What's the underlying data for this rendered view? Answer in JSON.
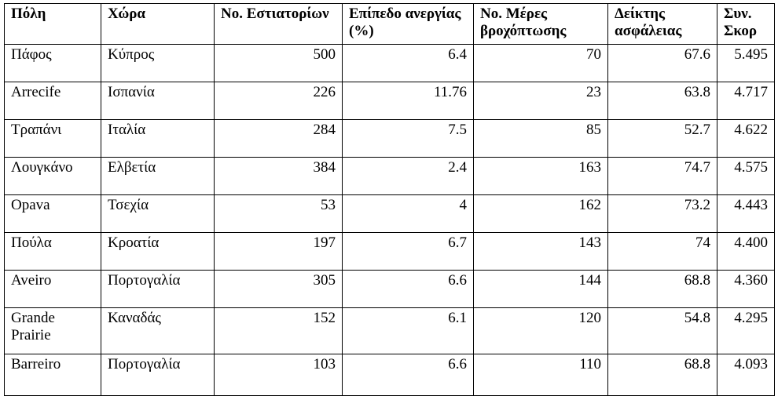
{
  "table": {
    "headers": [
      "Πόλη",
      "Χώρα",
      "No. Εστιατορίων",
      "Επίπεδο ανεργίας (%)",
      "No. Μέρες βροχόπτωσης",
      "Δείκτης ασφάλειας",
      "Συν. Σκορ"
    ],
    "rows": [
      [
        "Πάφος",
        "Κύπρος",
        "500",
        "6.4",
        "70",
        "67.6",
        "5.495"
      ],
      [
        "Arrecife",
        "Ισπανία",
        "226",
        "11.76",
        "23",
        "63.8",
        "4.717"
      ],
      [
        "Τραπάνι",
        "Ιταλία",
        "284",
        "7.5",
        "85",
        "52.7",
        "4.622"
      ],
      [
        "Λουγκάνο",
        "Ελβετία",
        "384",
        "2.4",
        "163",
        "74.7",
        "4.575"
      ],
      [
        "Opava",
        "Τσεχία",
        "53",
        "4",
        "162",
        "73.2",
        "4.443"
      ],
      [
        "Πούλα",
        "Κροατία",
        "197",
        "6.7",
        "143",
        "74",
        "4.400"
      ],
      [
        "Aveiro",
        "Πορτογαλία",
        "305",
        "6.6",
        "144",
        "68.8",
        "4.360"
      ],
      [
        "Grande Prairie",
        "Καναδάς",
        "152",
        "6.1",
        "120",
        "54.8",
        "4.295"
      ],
      [
        "Barreiro",
        "Πορτογαλία",
        "103",
        "6.6",
        "110",
        "68.8",
        "4.093"
      ]
    ]
  }
}
